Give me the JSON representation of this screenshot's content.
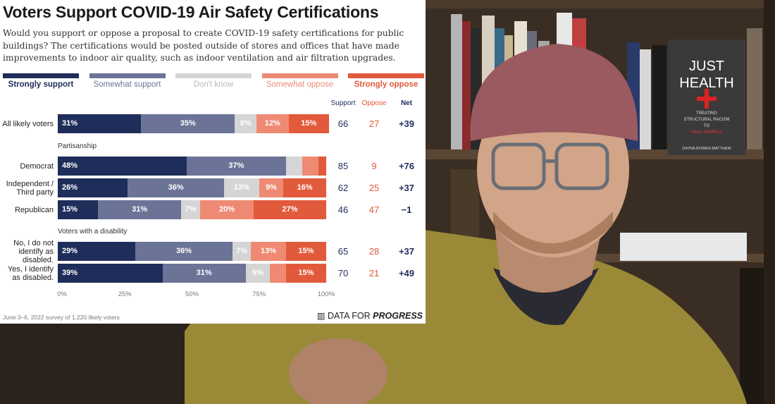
{
  "chart_data": {
    "type": "bar",
    "stacked": true,
    "orientation": "horizontal",
    "title": "Voters Support COVID-19 Air Safety Certifications",
    "subtitle": "Would you support or oppose a proposal to create COVID-19 safety certifications for public buildings? The certifications would be posted outside of stores and offices that have made improvements to indoor air quality, such as indoor ventilation and air filtration upgrades.",
    "xlim": [
      0,
      100
    ],
    "x_ticks": [
      "0%",
      "25%",
      "50%",
      "75%",
      "100%"
    ],
    "legend": {
      "placement": "top",
      "items": [
        {
          "label": "Strongly support",
          "color": "#1f2d5a"
        },
        {
          "label": "Somewhat support",
          "color": "#6b7497"
        },
        {
          "label": "Don't know",
          "color": "#d5d5d5"
        },
        {
          "label": "Somewhat oppose",
          "color": "#ee8a73"
        },
        {
          "label": "Strongly oppose",
          "color": "#e25a3c"
        }
      ]
    },
    "columns": {
      "support": "Support",
      "oppose": "Oppose",
      "net": "Net"
    },
    "groups": [
      {
        "label": "",
        "rows": [
          {
            "label": "All likely voters",
            "values": [
              31,
              35,
              8,
              12,
              15
            ],
            "support": "66",
            "oppose": "27",
            "net": "+39"
          }
        ]
      },
      {
        "label": "Partisanship",
        "rows": [
          {
            "label": "Democrat",
            "values": [
              48,
              37,
              6,
              6,
              3
            ],
            "support": "85",
            "oppose": "9",
            "net": "+76"
          },
          {
            "label": "Independent / Third party",
            "values": [
              26,
              36,
              13,
              9,
              16
            ],
            "support": "62",
            "oppose": "25",
            "net": "+37"
          },
          {
            "label": "Republican",
            "values": [
              15,
              31,
              7,
              20,
              27
            ],
            "support": "46",
            "oppose": "47",
            "net": "−1"
          }
        ]
      },
      {
        "label": "Voters with a disability",
        "rows": [
          {
            "label": "No, I do not identify as disabled.",
            "values": [
              29,
              36,
              7,
              13,
              15
            ],
            "support": "65",
            "oppose": "28",
            "net": "+37"
          },
          {
            "label": "Yes, I identify as disabled.",
            "values": [
              39,
              31,
              9,
              6,
              15
            ],
            "support": "70",
            "oppose": "21",
            "net": "+49"
          }
        ]
      }
    ],
    "footnote": "June 3–6, 2022 survey of 1,220 likely voters",
    "source_prefix": "DATA FOR",
    "source_bold": "PROGRESS",
    "colors": {
      "support_col": "#1f2d5a",
      "oppose_col": "#e25a3c",
      "net_col": "#1f2d5a"
    }
  },
  "video": {
    "book_title_1": "JUST",
    "book_title_2": "HEALTH",
    "book_sub_1": "TREATING",
    "book_sub_2": "STRUCTURAL RACISM",
    "book_sub_3": "TO",
    "book_sub_4": "HEAL AMERICA",
    "book_author": "DAYNA BOWEN MATTHEW"
  }
}
